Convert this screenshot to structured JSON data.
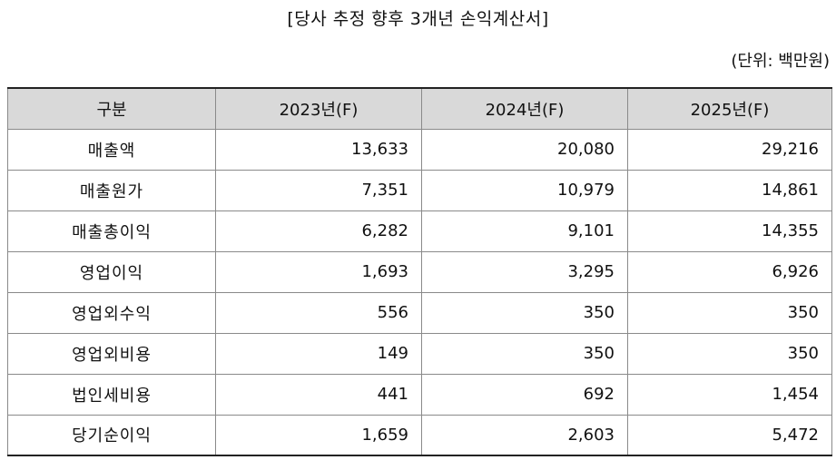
{
  "title": "[당사 추정 향후 3개년 손익계산서]",
  "unit": "(단위: 백만원)",
  "table": {
    "headers": [
      "구분",
      "2023년(F)",
      "2024년(F)",
      "2025년(F)"
    ],
    "rows": [
      {
        "label": "매출액",
        "values": [
          "13,633",
          "20,080",
          "29,216"
        ]
      },
      {
        "label": "매출원가",
        "values": [
          "7,351",
          "10,979",
          "14,861"
        ]
      },
      {
        "label": "매출총이익",
        "values": [
          "6,282",
          "9,101",
          "14,355"
        ]
      },
      {
        "label": "영업이익",
        "values": [
          "1,693",
          "3,295",
          "6,926"
        ]
      },
      {
        "label": "영업외수익",
        "values": [
          "556",
          "350",
          "350"
        ]
      },
      {
        "label": "영업외비용",
        "values": [
          "149",
          "350",
          "350"
        ]
      },
      {
        "label": "법인세비용",
        "values": [
          "441",
          "692",
          "1,454"
        ]
      },
      {
        "label": "당기순이익",
        "values": [
          "1,659",
          "2,603",
          "5,472"
        ]
      }
    ]
  }
}
